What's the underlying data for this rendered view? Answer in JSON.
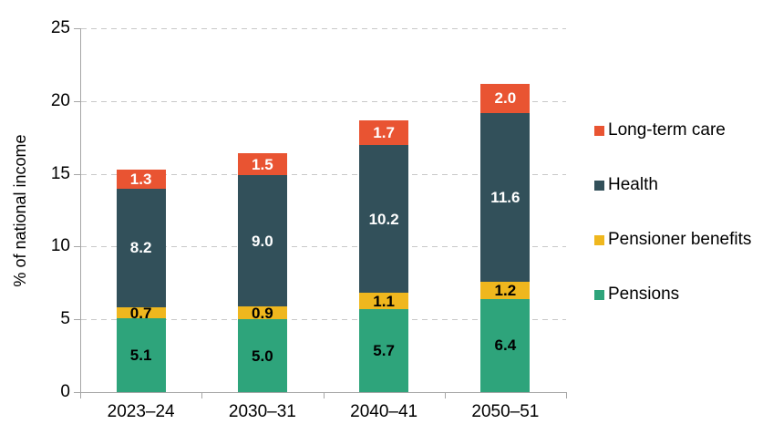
{
  "chart_data": {
    "type": "bar",
    "stacked": true,
    "title": "",
    "xlabel": "",
    "ylabel": "% of national income",
    "ylim": [
      0,
      25
    ],
    "yticks": [
      0,
      5,
      10,
      15,
      20,
      25
    ],
    "grid": "dashed-horizontal",
    "legend_position": "right",
    "categories": [
      "2023–24",
      "2030–31",
      "2040–41",
      "2050–51"
    ],
    "series": [
      {
        "name": "Pensions",
        "color": "#2EA47B",
        "label_color": "#000000",
        "values": [
          5.1,
          5.0,
          5.7,
          6.4
        ]
      },
      {
        "name": "Pensioner benefits",
        "color": "#EFB71E",
        "label_color": "#000000",
        "values": [
          0.7,
          0.9,
          1.1,
          1.2
        ]
      },
      {
        "name": "Health",
        "color": "#32505A",
        "label_color": "#FFFFFF",
        "values": [
          8.2,
          9.0,
          10.2,
          11.6
        ]
      },
      {
        "name": "Long-term care",
        "color": "#E95432",
        "label_color": "#FFFFFF",
        "values": [
          1.3,
          1.5,
          1.7,
          2.0
        ]
      }
    ],
    "legend_order": [
      "Long-term care",
      "Health",
      "Pensioner benefits",
      "Pensions"
    ],
    "axis_color": "#A6A6A6",
    "gridline_color": "#C9C9C9"
  }
}
